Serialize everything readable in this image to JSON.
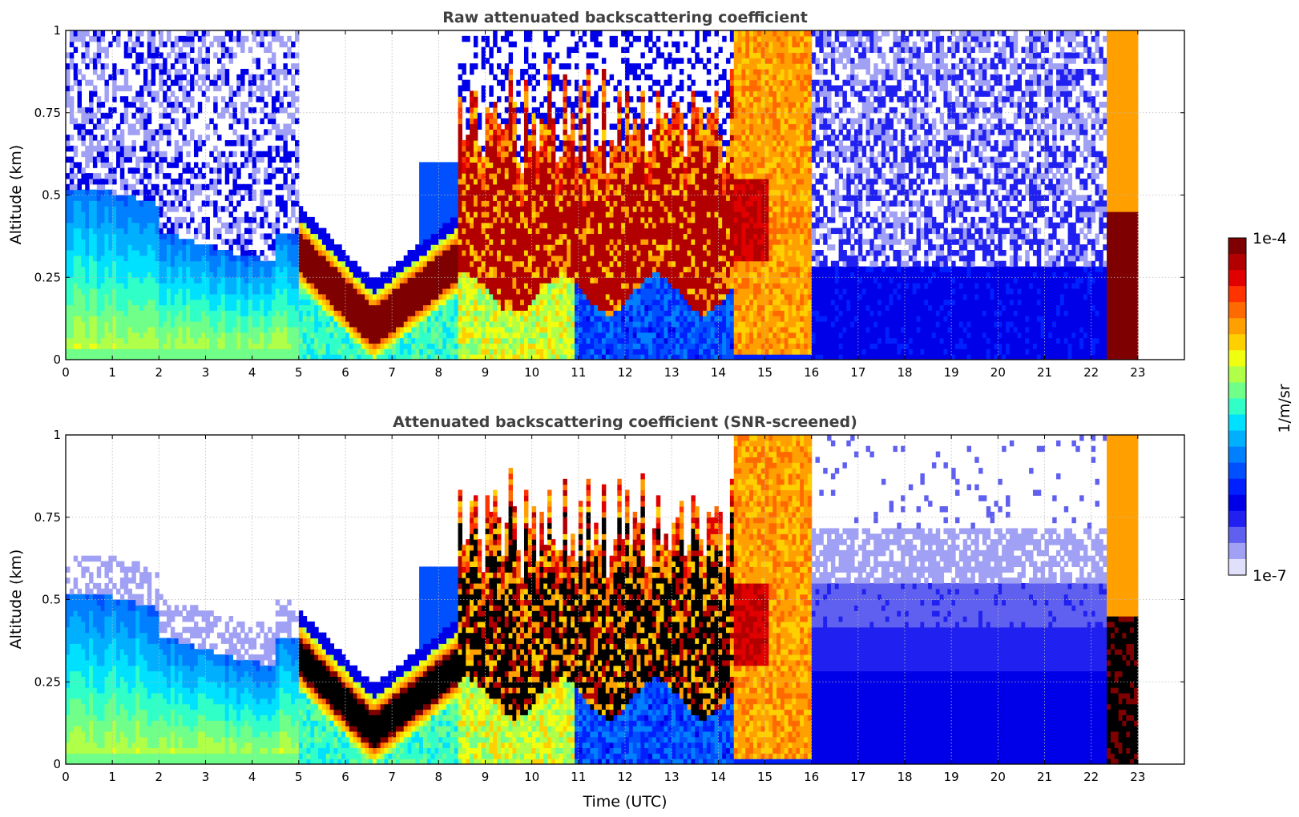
{
  "chart_data": [
    {
      "type": "heatmap",
      "title": "Raw attenuated backscattering coefficient",
      "xlabel": "",
      "ylabel": "Altitude (km)",
      "xlim": [
        0,
        24
      ],
      "ylim": [
        0,
        1
      ],
      "xticks": [
        "0",
        "1",
        "2",
        "3",
        "4",
        "5",
        "6",
        "7",
        "8",
        "9",
        "10",
        "11",
        "12",
        "13",
        "14",
        "15",
        "16",
        "17",
        "18",
        "19",
        "20",
        "21",
        "22",
        "23"
      ],
      "yticks": [
        "0",
        "0.25",
        "0.5",
        "0.75",
        "1"
      ],
      "grid": true,
      "features": [
        {
          "x_start": 0.0,
          "x_end": 5.0,
          "description": "aerosol layer",
          "top_km": 0.5,
          "level": "1e-6"
        },
        {
          "x_start": 5.0,
          "x_end": 8.4,
          "description": "strong cloud layer descending to 0.1 km near 6.5 UTC",
          "base_km": 0.05,
          "top_km": 0.35,
          "level": "1e-4"
        },
        {
          "x_start": 8.4,
          "x_end": 14.3,
          "description": "broken clouds",
          "base_km": 0.2,
          "top_km": 1.0,
          "level": "1e-4"
        },
        {
          "x_start": 14.3,
          "x_end": 16.0,
          "description": "dense low cloud / fog",
          "base_km": 0.0,
          "top_km": 1.0,
          "level": "1e-5"
        },
        {
          "x_start": 16.0,
          "x_end": 22.3,
          "description": "noisy boundary layer signal",
          "top_km": 0.3,
          "level": "1e-6"
        },
        {
          "x_start": 22.3,
          "x_end": 23.0,
          "description": "cloud",
          "base_km": 0.0,
          "top_km": 1.0,
          "level": "1e-4"
        }
      ]
    },
    {
      "type": "heatmap",
      "title": "Attenuated backscattering coefficient (SNR-screened)",
      "xlabel": "Time (UTC)",
      "ylabel": "Altitude (km)",
      "xlim": [
        0,
        24
      ],
      "ylim": [
        0,
        1
      ],
      "xticks": [
        "0",
        "1",
        "2",
        "3",
        "4",
        "5",
        "6",
        "7",
        "8",
        "9",
        "10",
        "11",
        "12",
        "13",
        "14",
        "15",
        "16",
        "17",
        "18",
        "19",
        "20",
        "21",
        "22",
        "23"
      ],
      "yticks": [
        "0",
        "0.25",
        "0.5",
        "0.75",
        "1"
      ],
      "grid": true,
      "features": [
        {
          "x_start": 0.0,
          "x_end": 5.0,
          "description": "aerosol layer, screened above 0.6 km",
          "top_km": 0.6,
          "level": "1e-6"
        },
        {
          "x_start": 5.0,
          "x_end": 8.4,
          "description": "saturated cloud core (black)",
          "base_km": 0.05,
          "top_km": 0.3,
          "level": ">1e-4"
        },
        {
          "x_start": 8.4,
          "x_end": 14.3,
          "description": "broken clouds with saturated cores",
          "base_km": 0.2,
          "top_km": 1.0,
          "level": ">1e-4"
        },
        {
          "x_start": 14.3,
          "x_end": 16.0,
          "description": "dense low cloud / fog",
          "base_km": 0.0,
          "top_km": 1.0,
          "level": "1e-5"
        },
        {
          "x_start": 16.0,
          "x_end": 22.2,
          "description": "boundary layer, smoothed",
          "top_km": 0.6,
          "level": "1e-6"
        },
        {
          "x_start": 22.2,
          "x_end": 23.0,
          "description": "cloud",
          "base_km": 0.0,
          "top_km": 1.0,
          "level": ">1e-4"
        }
      ]
    }
  ],
  "colorbar": {
    "label": "1/m/sr",
    "max_label": "1e-4",
    "min_label": "1e-7",
    "colors": [
      "#7f0000",
      "#b20000",
      "#e00000",
      "#ff3300",
      "#ff6a00",
      "#ffa000",
      "#ffd000",
      "#f0ff10",
      "#b0ff48",
      "#70ff88",
      "#30ffc8",
      "#00e0ff",
      "#00b0ff",
      "#0080ff",
      "#0050ff",
      "#0020ff",
      "#0000e8",
      "#2020f0",
      "#6060f0",
      "#a0a0f4",
      "#e0e0fa"
    ]
  },
  "palette": {
    "saturated": "#000000",
    "empty": "#ffffff"
  }
}
